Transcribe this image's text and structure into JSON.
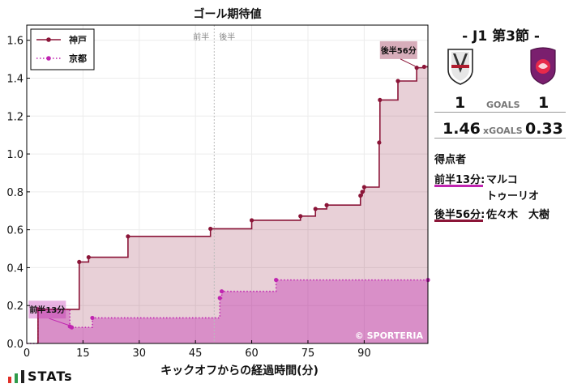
{
  "chart_data": {
    "type": "line",
    "title": "ゴール期待値",
    "xlabel": "キックオフからの経過時間(分)",
    "ylabel": "",
    "xlim": [
      0,
      107
    ],
    "ylim": [
      0,
      1.68
    ],
    "xticks": [
      0,
      15,
      30,
      45,
      60,
      75,
      90
    ],
    "yticks": [
      0.0,
      0.2,
      0.4,
      0.6,
      0.8,
      1.0,
      1.2,
      1.4,
      1.6
    ],
    "half_marker": {
      "x": 50,
      "labels": [
        "前半",
        "後半"
      ]
    },
    "legend_position": "top-left",
    "watermark": "© SPORTERIA",
    "series": [
      {
        "name": "神戸",
        "color": "#8b1538",
        "style": "solid",
        "points": [
          [
            3,
            0.18
          ],
          [
            14,
            0.43
          ],
          [
            16.5,
            0.455
          ],
          [
            27,
            0.565
          ],
          [
            49,
            0.605
          ],
          [
            60,
            0.65
          ],
          [
            73,
            0.672
          ],
          [
            77,
            0.71
          ],
          [
            80,
            0.73
          ],
          [
            89,
            0.78
          ],
          [
            89.5,
            0.8
          ],
          [
            90,
            0.825
          ],
          [
            94,
            1.06
          ],
          [
            94.2,
            1.285
          ],
          [
            99,
            1.385
          ],
          [
            104,
            1.455
          ],
          [
            106,
            1.46
          ]
        ],
        "start": 3,
        "end": 107
      },
      {
        "name": "京都",
        "color": "#c025b0",
        "style": "dotted",
        "points": [
          [
            3,
            0.18
          ],
          [
            11.5,
            0.09
          ],
          [
            12,
            0.085
          ],
          [
            17.5,
            0.135
          ],
          [
            51.5,
            0.24
          ],
          [
            52,
            0.275
          ],
          [
            66.5,
            0.335
          ],
          [
            107,
            0.335
          ]
        ],
        "start": 0,
        "end": 107
      }
    ],
    "annotations": [
      {
        "label": "前半13分",
        "x": 12,
        "y": 0.085,
        "color": "#c025b0"
      },
      {
        "label": "後半56分",
        "x": 104,
        "y": 1.455,
        "color": "#8b1538"
      }
    ]
  },
  "match": {
    "round": "- J1 第3節 -",
    "home": {
      "name": "神戸",
      "goals": "1",
      "xgoals": "1.46",
      "color": "#8b1538"
    },
    "away": {
      "name": "京都",
      "goals": "1",
      "xgoals": "0.33",
      "color": "#c025b0"
    },
    "goals_label": "GOALS",
    "xgoals_label": "xGOALS"
  },
  "scorers": {
    "heading": "得点者",
    "items": [
      {
        "time": "前半13分:",
        "name_line1": "マルコ",
        "name_line2": "トゥーリオ",
        "color": "#c025b0"
      },
      {
        "time": "後半56分:",
        "name_line1": "佐々木　大樹",
        "name_line2": "",
        "color": "#8b1538"
      }
    ]
  },
  "brand": {
    "name": "STATs",
    "bar_colors": [
      "#e0312a",
      "#2e9b4a",
      "#222222"
    ]
  }
}
